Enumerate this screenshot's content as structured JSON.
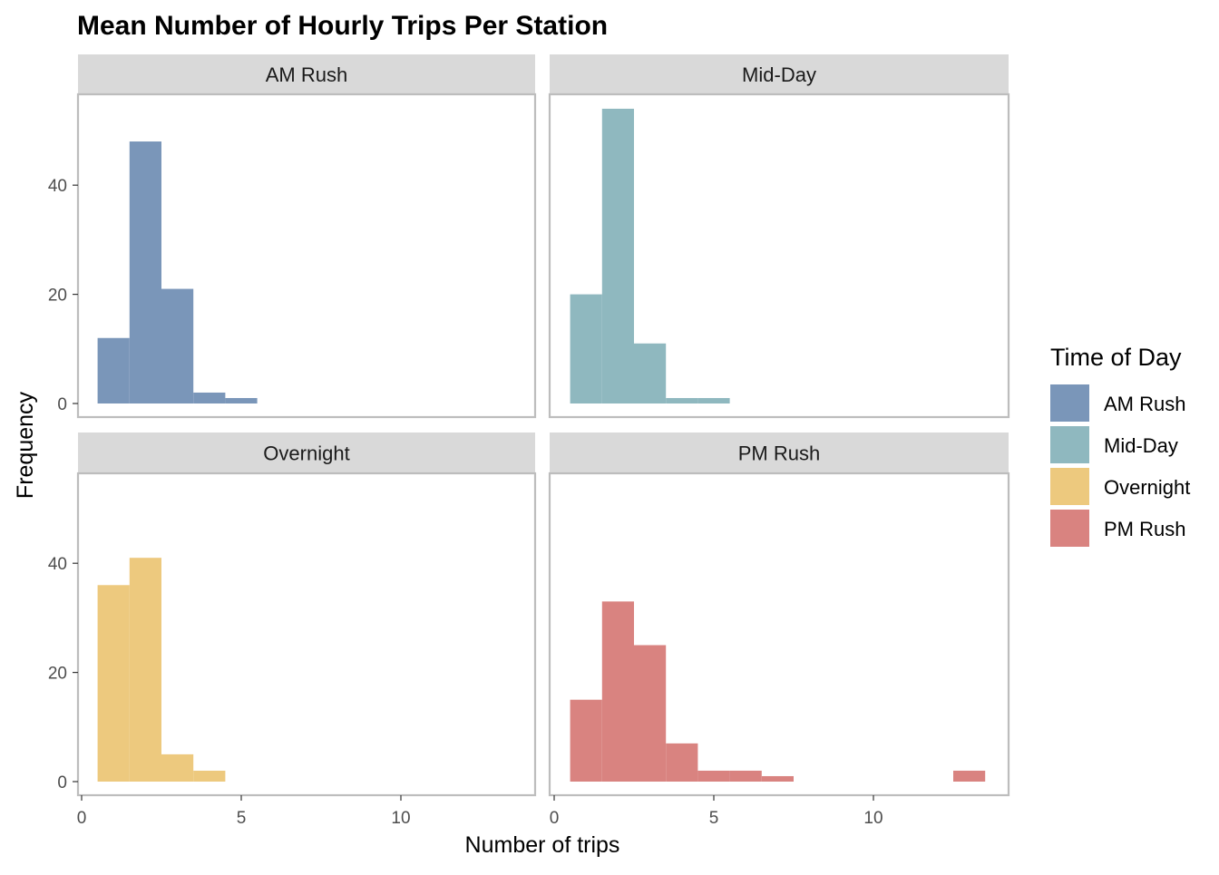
{
  "chart_data": {
    "type": "histogram",
    "title": "Mean Number of Hourly Trips Per Station",
    "xlabel": "Number of trips",
    "ylabel": "Frequency",
    "xlim": [
      0,
      14
    ],
    "ylim": [
      0,
      55
    ],
    "x_ticks": [
      0,
      5,
      10
    ],
    "y_ticks": [
      0,
      20,
      40
    ],
    "bin_width": 1,
    "grid": false,
    "legend": {
      "title": "Time of Day",
      "position": "right",
      "entries": [
        {
          "name": "AM Rush",
          "color": "#7a96b9"
        },
        {
          "name": "Mid-Day",
          "color": "#8fb8bf"
        },
        {
          "name": "Overnight",
          "color": "#edc97e"
        },
        {
          "name": "PM Rush",
          "color": "#d98380"
        }
      ]
    },
    "panels": [
      {
        "name": "AM Rush",
        "color": "#7a96b9",
        "bins": [
          {
            "x": 1,
            "count": 12
          },
          {
            "x": 2,
            "count": 48
          },
          {
            "x": 3,
            "count": 21
          },
          {
            "x": 4,
            "count": 2
          },
          {
            "x": 5,
            "count": 1
          }
        ]
      },
      {
        "name": "Mid-Day",
        "color": "#8fb8bf",
        "bins": [
          {
            "x": 1,
            "count": 20
          },
          {
            "x": 2,
            "count": 54
          },
          {
            "x": 3,
            "count": 11
          },
          {
            "x": 4,
            "count": 1
          },
          {
            "x": 5,
            "count": 1
          }
        ]
      },
      {
        "name": "Overnight",
        "color": "#edc97e",
        "bins": [
          {
            "x": 1,
            "count": 36
          },
          {
            "x": 2,
            "count": 41
          },
          {
            "x": 3,
            "count": 5
          },
          {
            "x": 4,
            "count": 2
          }
        ]
      },
      {
        "name": "PM Rush",
        "color": "#d98380",
        "bins": [
          {
            "x": 1,
            "count": 15
          },
          {
            "x": 2,
            "count": 33
          },
          {
            "x": 3,
            "count": 25
          },
          {
            "x": 4,
            "count": 7
          },
          {
            "x": 5,
            "count": 2
          },
          {
            "x": 6,
            "count": 2
          },
          {
            "x": 7,
            "count": 1
          },
          {
            "x": 13,
            "count": 2
          }
        ]
      }
    ]
  }
}
